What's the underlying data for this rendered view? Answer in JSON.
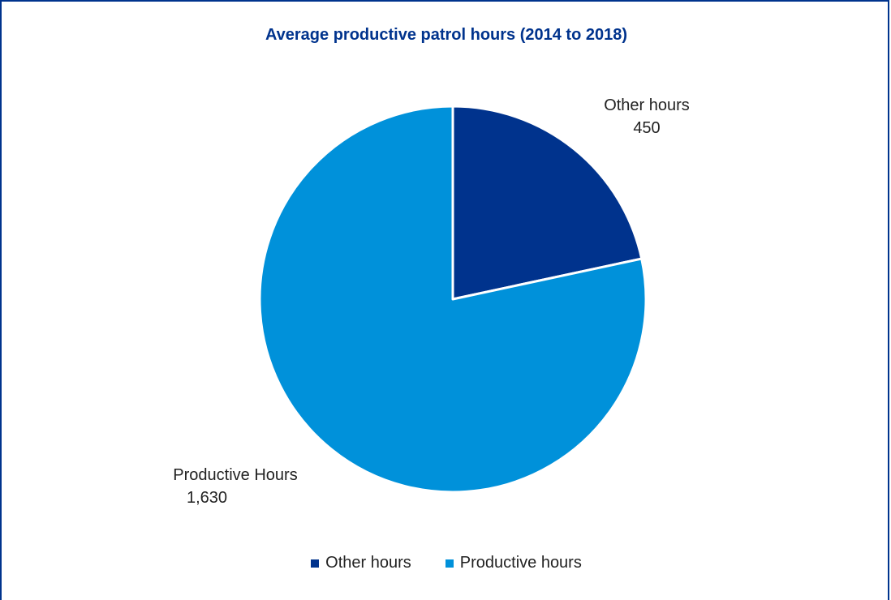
{
  "chart_data": {
    "type": "pie",
    "title": "Average productive patrol hours (2014 to 2018)",
    "slices": [
      {
        "label": "Other hours",
        "value": 450,
        "value_text": "450",
        "legend": "Other hours",
        "color": "#00338d"
      },
      {
        "label": "Productive Hours",
        "value": 1630,
        "value_text": "1,630",
        "legend": "Productive hours",
        "color": "#0091da"
      }
    ],
    "start_angle_deg": 0,
    "direction": "clockwise",
    "legend_position": "bottom"
  }
}
